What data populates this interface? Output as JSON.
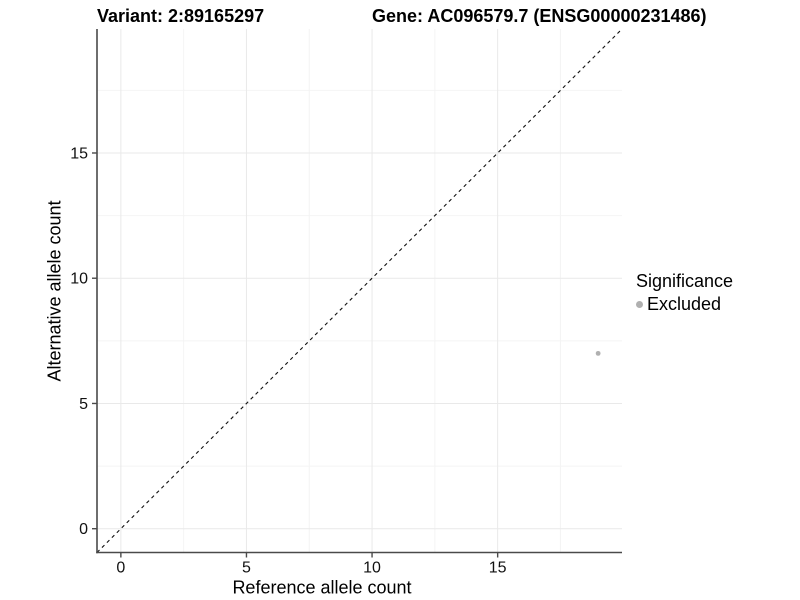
{
  "header": {
    "variant_title": "Variant: 2:89165297",
    "gene_title": "Gene: AC096579.7 (ENSG00000231486)"
  },
  "legend": {
    "title": "Significance",
    "items": [
      {
        "label": "Excluded",
        "color": "#b0b0b0"
      }
    ]
  },
  "chart_data": {
    "type": "scatter",
    "title": "Variant: 2:89165297 / Gene: AC096579.7 (ENSG00000231486)",
    "xlabel": "Reference allele count",
    "ylabel": "Alternative allele count",
    "xlim": [
      -0.95,
      19.95
    ],
    "ylim": [
      -0.95,
      19.95
    ],
    "x_ticks": [
      0,
      5,
      10,
      15
    ],
    "y_ticks": [
      0,
      5,
      10,
      15
    ],
    "x_minor_ticks": [
      2.5,
      7.5,
      12.5,
      17.5
    ],
    "y_minor_ticks": [
      2.5,
      7.5,
      12.5,
      17.5
    ],
    "grid": "major and minor gridlines, very light gray on white panel",
    "legend_position": "right",
    "series": [
      {
        "name": "Excluded",
        "color": "#b0b0b0",
        "point_radius": 2.4,
        "points": [
          {
            "x": 19,
            "y": 7
          }
        ]
      }
    ],
    "reference_line": {
      "type": "identity y=x",
      "style": "dashed",
      "color": "#111111"
    }
  },
  "colors": {
    "background": "#ffffff",
    "axis_line": "#4a4a4a",
    "tick_label": "#111111",
    "grid_major": "#e9e9e9",
    "grid_minor": "#f4f4f4",
    "point": "#b0b0b0",
    "dashed_line": "#111111"
  }
}
